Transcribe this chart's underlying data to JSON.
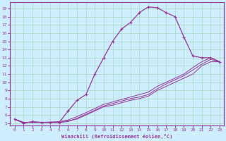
{
  "xlabel": "Windchill (Refroidissement éolien,°C)",
  "bg_color": "#cceeff",
  "grid_color": "#aaddcc",
  "line_color": "#993399",
  "xlim": [
    -0.5,
    23.5
  ],
  "ylim": [
    4.7,
    19.8
  ],
  "xticks": [
    0,
    1,
    2,
    3,
    4,
    5,
    6,
    7,
    8,
    9,
    10,
    11,
    12,
    13,
    14,
    15,
    16,
    17,
    18,
    19,
    20,
    21,
    22,
    23
  ],
  "yticks": [
    5,
    6,
    7,
    8,
    9,
    10,
    11,
    12,
    13,
    14,
    15,
    16,
    17,
    18,
    19
  ],
  "line1_x": [
    0,
    1,
    2,
    3,
    4,
    5,
    6,
    7,
    8,
    9,
    10,
    11,
    12,
    13,
    14,
    15,
    16,
    17,
    18,
    19,
    20,
    21,
    22,
    23
  ],
  "line1_y": [
    5.5,
    5.0,
    5.2,
    5.1,
    5.1,
    5.1,
    6.5,
    7.8,
    8.5,
    11.0,
    13.0,
    15.0,
    16.5,
    17.3,
    18.5,
    19.2,
    19.1,
    18.5,
    18.0,
    15.5,
    13.2,
    13.0,
    13.0,
    12.5
  ],
  "line2_x": [
    0,
    1,
    3,
    5,
    6,
    7,
    8,
    9,
    10,
    11,
    12,
    13,
    14,
    15,
    16,
    17,
    18,
    19,
    20,
    21,
    22,
    23
  ],
  "line2_y": [
    5.5,
    5.1,
    5.1,
    5.1,
    5.3,
    5.5,
    6.0,
    6.5,
    7.0,
    7.2,
    7.5,
    7.8,
    8.0,
    8.3,
    9.0,
    9.5,
    10.0,
    10.5,
    11.0,
    12.0,
    12.5,
    12.5
  ],
  "line3_x": [
    0,
    1,
    3,
    5,
    6,
    7,
    8,
    9,
    10,
    11,
    12,
    13,
    14,
    15,
    16,
    17,
    18,
    19,
    20,
    21,
    22,
    23
  ],
  "line3_y": [
    5.5,
    5.1,
    5.1,
    5.2,
    5.4,
    5.8,
    6.3,
    6.8,
    7.3,
    7.6,
    7.9,
    8.2,
    8.5,
    8.8,
    9.5,
    10.0,
    10.5,
    11.0,
    11.8,
    12.5,
    13.0,
    12.5
  ],
  "line4_x": [
    0,
    1,
    3,
    5,
    6,
    7,
    8,
    9,
    10,
    11,
    12,
    13,
    14,
    15,
    16,
    17,
    18,
    19,
    20,
    21,
    22,
    23
  ],
  "line4_y": [
    5.5,
    5.1,
    5.1,
    5.1,
    5.2,
    5.6,
    6.1,
    6.6,
    7.1,
    7.4,
    7.7,
    8.0,
    8.2,
    8.5,
    9.2,
    9.8,
    10.3,
    10.8,
    11.5,
    12.2,
    12.8,
    12.5
  ]
}
